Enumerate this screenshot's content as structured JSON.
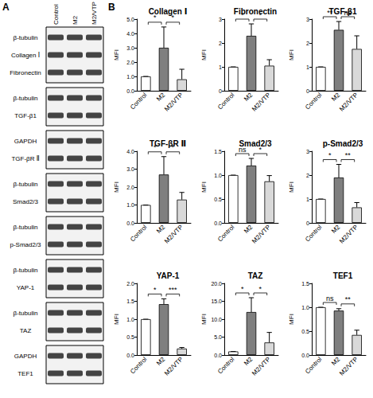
{
  "panel_a": {
    "label": "A",
    "lanes": [
      "Control",
      "M2",
      "M2/VTP"
    ],
    "blots": [
      [
        "β-tubulin",
        "Collagen Ⅰ",
        "Fibronectin"
      ],
      [
        "β-tubulin",
        "TGF-β1"
      ],
      [
        "GAPDH",
        "TGF-βR Ⅱ"
      ],
      [
        "β-tubulin",
        "Smad2/3"
      ],
      [
        "β-tubulin",
        "p-Smad2/3"
      ],
      [
        "β-tubulin",
        "YAP-1"
      ],
      [
        "β-tubulin",
        "TAZ"
      ],
      [
        "GAPDH",
        "TEF1"
      ]
    ]
  },
  "panel_b": {
    "label": "B"
  },
  "chart_data": [
    {
      "type": "bar",
      "title": "Collagen Ⅰ",
      "y_label": "MFI",
      "categories": [
        "Control",
        "M2",
        "M2/VTP"
      ],
      "values": [
        1,
        3.0,
        0.8
      ],
      "errors": [
        0,
        1.45,
        0.7
      ],
      "colors": [
        "#ffffff",
        "#7f7f7f",
        "#d9d9d9"
      ],
      "ylim": [
        0,
        5
      ],
      "yticks": [
        {
          "value": 0,
          "label": "0.0"
        },
        {
          "value": 1,
          "label": "1.0"
        },
        {
          "value": 2,
          "label": "2.0"
        },
        {
          "value": 3,
          "label": "3.0"
        },
        {
          "value": 4,
          "label": "4.0"
        },
        {
          "value": 5,
          "label": "5.0"
        }
      ],
      "grid": false,
      "significance": [
        {
          "from": "Control",
          "to": "M2",
          "label": "*"
        },
        {
          "from": "M2",
          "to": "M2/VTP",
          "label": "*"
        }
      ]
    },
    {
      "type": "bar",
      "title": "Fibronectin",
      "y_label": "MFI",
      "categories": [
        "Control",
        "M2",
        "M2/VTP"
      ],
      "values": [
        1,
        2.3,
        1.05
      ],
      "errors": [
        0,
        0.5,
        0.25
      ],
      "colors": [
        "#ffffff",
        "#7f7f7f",
        "#d9d9d9"
      ],
      "ylim": [
        0,
        3
      ],
      "yticks": [
        0,
        1,
        2,
        3
      ],
      "grid": false,
      "significance": [
        {
          "from": "Control",
          "to": "M2",
          "label": "*"
        },
        {
          "from": "M2",
          "to": "M2/VTP",
          "label": "*"
        }
      ]
    },
    {
      "type": "bar",
      "title": "TGF-β1",
      "y_label": "MFI",
      "categories": [
        "Control",
        "M2",
        "M2/VTP"
      ],
      "values": [
        1,
        2.55,
        1.75
      ],
      "errors": [
        0,
        0.35,
        0.55
      ],
      "colors": [
        "#ffffff",
        "#7f7f7f",
        "#d9d9d9"
      ],
      "ylim": [
        0,
        3
      ],
      "yticks": [
        0,
        1,
        2,
        3
      ],
      "grid": false,
      "significance": [
        {
          "from": "Control",
          "to": "M2",
          "label": "**"
        },
        {
          "from": "M2",
          "to": "M2/VTP",
          "label": "ns"
        }
      ]
    },
    {
      "type": "bar",
      "title": "TGF-βR Ⅱ",
      "y_label": "MFI",
      "categories": [
        "Control",
        "M2",
        "M2/VTP"
      ],
      "values": [
        1,
        2.7,
        1.3
      ],
      "errors": [
        0,
        1.0,
        0.4
      ],
      "colors": [
        "#ffffff",
        "#7f7f7f",
        "#d9d9d9"
      ],
      "ylim": [
        0,
        4
      ],
      "yticks": [
        {
          "value": 0,
          "label": "0.0"
        },
        {
          "value": 1,
          "label": "1.0"
        },
        {
          "value": 2,
          "label": "2.0"
        },
        {
          "value": 3,
          "label": "3.0"
        },
        {
          "value": 4,
          "label": "4.0"
        }
      ],
      "grid": false,
      "significance": [
        {
          "from": "Control",
          "to": "M2",
          "label": "*"
        },
        {
          "from": "M2",
          "to": "M2/VTP",
          "label": "*"
        }
      ]
    },
    {
      "type": "bar",
      "title": "Smad2/3",
      "y_label": "MFI",
      "categories": [
        "Control",
        "M2",
        "M2/VTP"
      ],
      "values": [
        1,
        1.2,
        0.87
      ],
      "errors": [
        0,
        0.15,
        0.12
      ],
      "colors": [
        "#ffffff",
        "#7f7f7f",
        "#d9d9d9"
      ],
      "ylim": [
        0,
        1.5
      ],
      "yticks": [
        {
          "value": 0,
          "label": "0.0"
        },
        0.5,
        {
          "value": 1,
          "label": "1.0"
        },
        1.5
      ],
      "grid": false,
      "significance": [
        {
          "from": "Control",
          "to": "M2",
          "label": "ns"
        },
        {
          "from": "M2",
          "to": "M2/VTP",
          "label": "*"
        }
      ]
    },
    {
      "type": "bar",
      "title": "p-Smad2/3",
      "y_label": "MFI",
      "categories": [
        "Control",
        "M2",
        "M2/VTP"
      ],
      "values": [
        1,
        1.9,
        0.65
      ],
      "errors": [
        0,
        0.55,
        0.2
      ],
      "colors": [
        "#ffffff",
        "#7f7f7f",
        "#d9d9d9"
      ],
      "ylim": [
        0,
        3
      ],
      "yticks": [
        0,
        1,
        2,
        3
      ],
      "grid": false,
      "significance": [
        {
          "from": "Control",
          "to": "M2",
          "label": "*"
        },
        {
          "from": "M2",
          "to": "M2/VTP",
          "label": "**"
        }
      ]
    },
    {
      "type": "bar",
      "title": "YAP-1",
      "y_label": "MFI",
      "categories": [
        "Control",
        "M2",
        "M2/VTP"
      ],
      "values": [
        1,
        1.42,
        0.18
      ],
      "errors": [
        0,
        0.15,
        0.03
      ],
      "colors": [
        "#ffffff",
        "#7f7f7f",
        "#d9d9d9"
      ],
      "ylim": [
        0,
        2
      ],
      "yticks": [
        {
          "value": 0,
          "label": "0.0"
        },
        0.5,
        {
          "value": 1,
          "label": "1.0"
        },
        1.5,
        {
          "value": 2,
          "label": "2.0"
        }
      ],
      "grid": false,
      "significance": [
        {
          "from": "Control",
          "to": "M2",
          "label": "*"
        },
        {
          "from": "M2",
          "to": "M2/VTP",
          "label": "***"
        }
      ]
    },
    {
      "type": "bar",
      "title": "TAZ",
      "y_label": "MFI",
      "categories": [
        "Control",
        "M2",
        "M2/VTP"
      ],
      "values": [
        1,
        12,
        3.5
      ],
      "errors": [
        0,
        4.0,
        2.8
      ],
      "colors": [
        "#ffffff",
        "#7f7f7f",
        "#d9d9d9"
      ],
      "ylim": [
        0,
        20
      ],
      "yticks": [
        {
          "value": 0,
          "label": "0.0"
        },
        {
          "value": 5,
          "label": "5.0"
        },
        {
          "value": 10,
          "label": "10.0"
        },
        {
          "value": 15,
          "label": "15.0"
        },
        {
          "value": 20,
          "label": "20.0"
        }
      ],
      "grid": false,
      "significance": [
        {
          "from": "Control",
          "to": "M2",
          "label": "*"
        },
        {
          "from": "M2",
          "to": "M2/VTP",
          "label": "*"
        }
      ]
    },
    {
      "type": "bar",
      "title": "TEF1",
      "y_label": "MFI",
      "categories": [
        "Control",
        "M2",
        "M2/VTP"
      ],
      "values": [
        1,
        0.93,
        0.42
      ],
      "errors": [
        0,
        0.04,
        0.1
      ],
      "colors": [
        "#ffffff",
        "#7f7f7f",
        "#d9d9d9"
      ],
      "ylim": [
        0,
        1.5
      ],
      "yticks": [
        {
          "value": 0,
          "label": "0.0"
        },
        0.5,
        {
          "value": 1,
          "label": "1.0"
        },
        1.5
      ],
      "grid": false,
      "significance": [
        {
          "from": "Control",
          "to": "M2",
          "label": "ns"
        },
        {
          "from": "M2",
          "to": "M2/VTP",
          "label": "**"
        }
      ]
    }
  ]
}
